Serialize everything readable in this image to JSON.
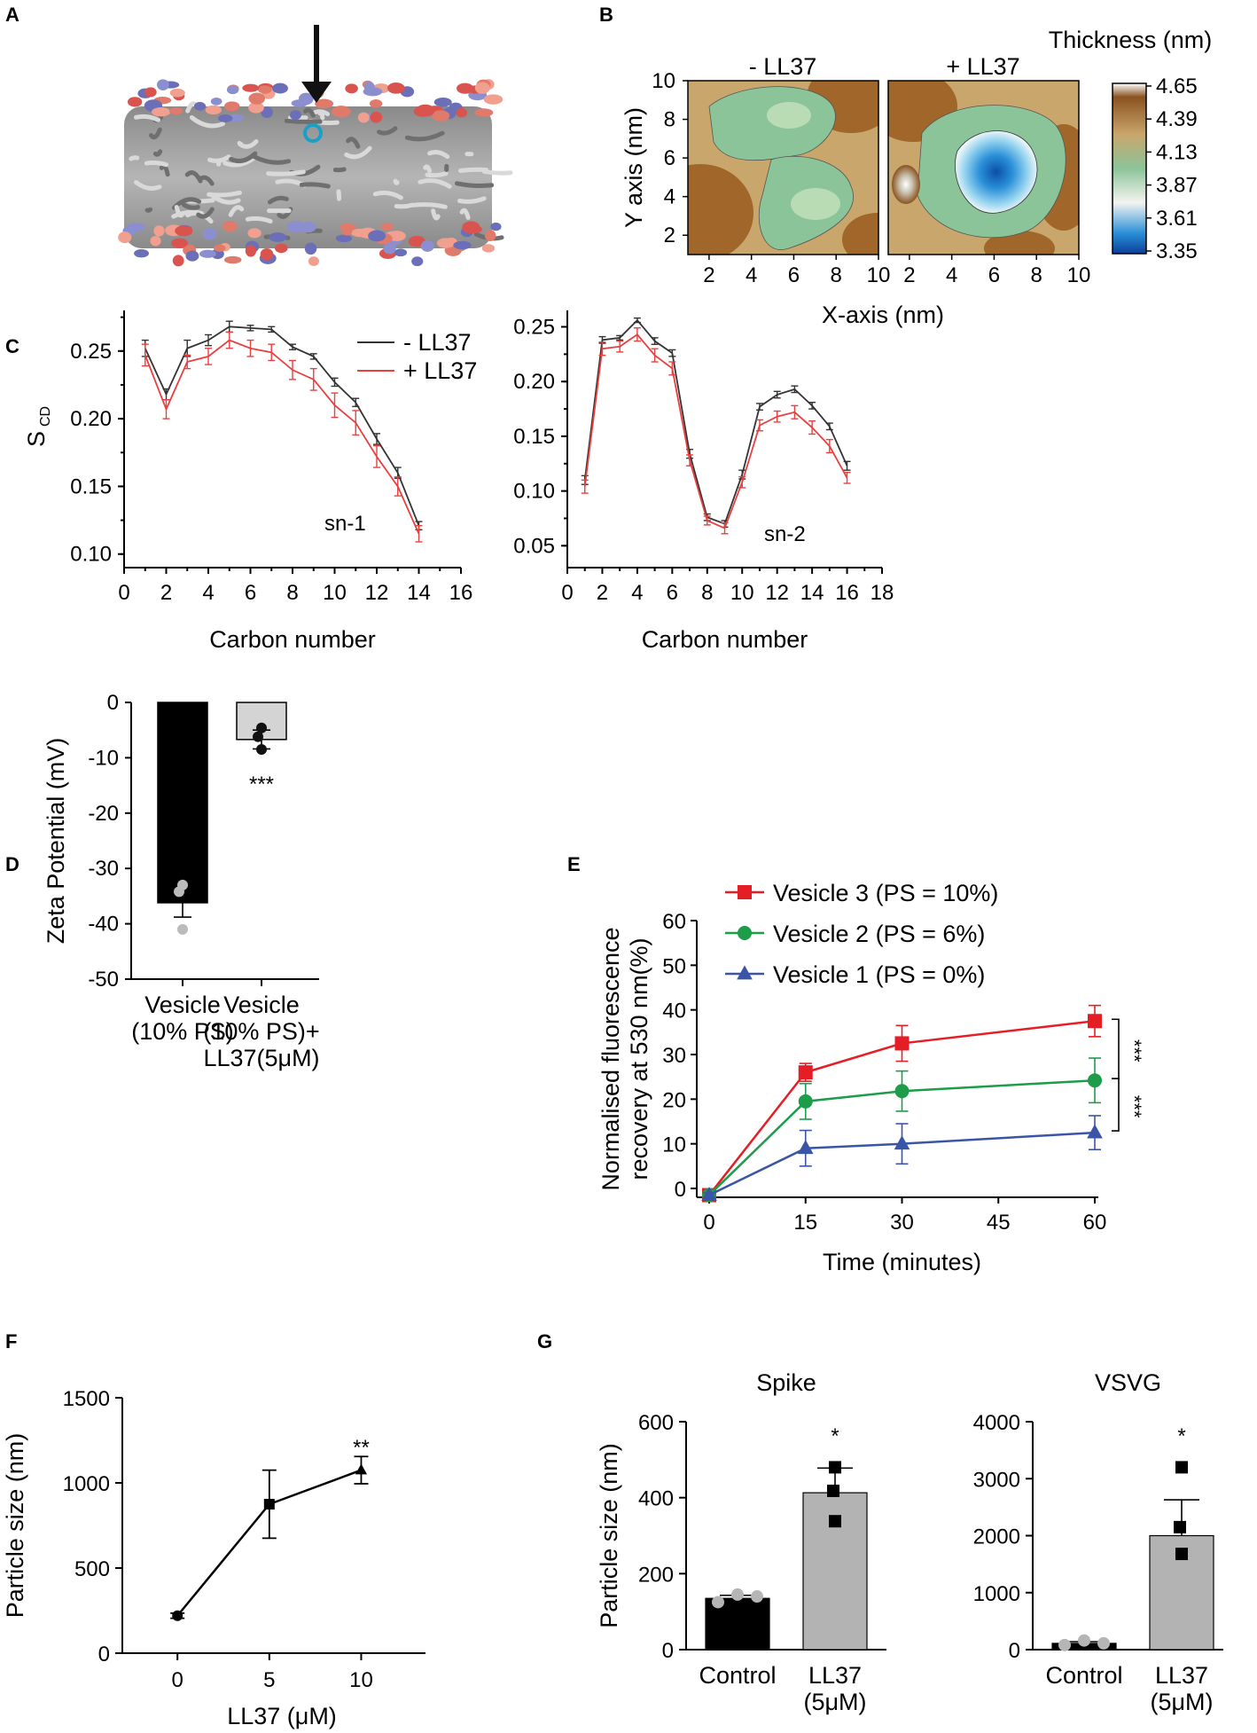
{
  "panels": {
    "a": "A",
    "b": "B",
    "c": "C",
    "d": "D",
    "e": "E",
    "f": "F",
    "g": "G"
  },
  "panel_b": {
    "title_left": "- LL37",
    "title_right": "+ LL37",
    "colorbar_title": "Thickness (nm)",
    "colorbar_ticks": [
      "4.65",
      "4.39",
      "4.13",
      "3.87",
      "3.61",
      "3.35"
    ],
    "xlabel": "X-axis (nm)",
    "ylabel": "Y axis (nm)",
    "xticks": [
      "2",
      "4",
      "6",
      "8",
      "10"
    ],
    "yticks": [
      "10",
      "8",
      "6",
      "4",
      "2"
    ],
    "colors": {
      "brown": "#a0662a",
      "tan": "#c9a66b",
      "green": "#8cc49a",
      "lightgreen": "#b9dcb4",
      "white": "#f4f4f0",
      "blue": "#2a8fd8",
      "darkblue": "#0a4fa8"
    }
  },
  "chart_data": [
    {
      "id": "C-sn1",
      "type": "line",
      "ylabel": "S",
      "ylabel_sub": "CD",
      "xlabel": "Carbon number",
      "annotation": "sn-1",
      "xlim": [
        0,
        16
      ],
      "ylim": [
        0.09,
        0.28
      ],
      "xticks": [
        0,
        2,
        4,
        6,
        8,
        10,
        12,
        14,
        16
      ],
      "yticks": [
        0.1,
        0.15,
        0.2,
        0.25
      ],
      "x": [
        1,
        2,
        3,
        4,
        5,
        6,
        7,
        8,
        9,
        10,
        11,
        12,
        13,
        14
      ],
      "series": [
        {
          "name": "- LL37",
          "color": "#333333",
          "values": [
            0.252,
            0.218,
            0.252,
            0.258,
            0.268,
            0.267,
            0.266,
            0.253,
            0.246,
            0.227,
            0.212,
            0.185,
            0.16,
            0.121
          ],
          "err": [
            0.006,
            0.004,
            0.006,
            0.004,
            0.004,
            0.002,
            0.002,
            0.002,
            0.002,
            0.003,
            0.003,
            0.004,
            0.004,
            0.003
          ]
        },
        {
          "name": "+ LL37",
          "color": "#e84040",
          "values": [
            0.247,
            0.207,
            0.242,
            0.246,
            0.258,
            0.252,
            0.249,
            0.236,
            0.229,
            0.21,
            0.197,
            0.172,
            0.15,
            0.115
          ],
          "err": [
            0.008,
            0.007,
            0.005,
            0.006,
            0.006,
            0.006,
            0.006,
            0.007,
            0.008,
            0.009,
            0.009,
            0.008,
            0.007,
            0.006
          ]
        }
      ]
    },
    {
      "id": "C-sn2",
      "type": "line",
      "xlabel": "Carbon number",
      "annotation": "sn-2",
      "xlim": [
        0,
        18
      ],
      "ylim": [
        0.03,
        0.265
      ],
      "xticks": [
        0,
        2,
        4,
        6,
        8,
        10,
        12,
        14,
        16,
        18
      ],
      "yticks": [
        0.05,
        0.1,
        0.15,
        0.2,
        0.25
      ],
      "x": [
        1,
        2,
        3,
        4,
        5,
        6,
        7,
        8,
        9,
        10,
        11,
        12,
        13,
        14,
        15,
        16
      ],
      "series": [
        {
          "name": "- LL37",
          "color": "#333333",
          "values": [
            0.11,
            0.238,
            0.24,
            0.256,
            0.237,
            0.226,
            0.134,
            0.076,
            0.07,
            0.115,
            0.177,
            0.188,
            0.193,
            0.178,
            0.159,
            0.123
          ],
          "err": [
            0.004,
            0.003,
            0.002,
            0.002,
            0.003,
            0.003,
            0.004,
            0.003,
            0.003,
            0.004,
            0.003,
            0.003,
            0.003,
            0.003,
            0.003,
            0.004
          ]
        },
        {
          "name": "+ LL37",
          "color": "#e84040",
          "values": [
            0.104,
            0.23,
            0.232,
            0.243,
            0.224,
            0.212,
            0.128,
            0.073,
            0.066,
            0.108,
            0.16,
            0.168,
            0.172,
            0.158,
            0.141,
            0.112
          ],
          "err": [
            0.006,
            0.006,
            0.005,
            0.006,
            0.006,
            0.006,
            0.005,
            0.004,
            0.005,
            0.005,
            0.005,
            0.005,
            0.006,
            0.006,
            0.006,
            0.005
          ]
        }
      ]
    },
    {
      "id": "D",
      "type": "bar",
      "ylabel": "Zeta Potential (mV)",
      "ylim": [
        -50,
        0
      ],
      "yticks": [
        0,
        -10,
        -20,
        -30,
        -40,
        -50
      ],
      "categories": [
        "Vesicle (10% PS)",
        "Vesicle (10% PS)+ LL37(5μM)"
      ],
      "category_lines": [
        [
          "Vesicle",
          "(10% PS)"
        ],
        [
          "Vesicle",
          "(10% PS)+",
          "LL37(5μM)"
        ]
      ],
      "values": [
        -36.2,
        -6.7
      ],
      "err": [
        2.6,
        1.7
      ],
      "colors": [
        "#000000",
        "#d4d4d4"
      ],
      "points": [
        [
          -33.0,
          -34.2,
          -41.0
        ],
        [
          -4.6,
          -6.2,
          -8.5
        ]
      ],
      "point_colors": [
        "#bbbbbb",
        "#111111"
      ],
      "significance": [
        "",
        "***"
      ]
    },
    {
      "id": "E",
      "type": "line",
      "ylabel_lines": [
        "Normalised fluorescence",
        "recovery at 530 nm(%)"
      ],
      "xlabel": "Time (minutes)",
      "xlim": [
        0,
        60
      ],
      "ylim": [
        0,
        60
      ],
      "xticks": [
        0,
        15,
        30,
        45,
        60
      ],
      "yticks": [
        0,
        10,
        20,
        30,
        40,
        50,
        60
      ],
      "x": [
        0,
        15,
        30,
        60
      ],
      "series": [
        {
          "name": "Vesicle 3  (PS = 10%)",
          "color": "#e51e25",
          "marker": "square",
          "values": [
            -1.5,
            26,
            32.5,
            37.5
          ],
          "err": [
            0.5,
            2.0,
            4.0,
            3.5
          ]
        },
        {
          "name": "Vesicle 2  (PS = 6%)",
          "color": "#1d9c4a",
          "marker": "circle",
          "values": [
            -1.5,
            19.5,
            21.8,
            24.2
          ],
          "err": [
            0.5,
            4.0,
            4.5,
            5.0
          ]
        },
        {
          "name": "Vesicle 1  (PS = 0%)",
          "color": "#3a55a8",
          "marker": "triangle",
          "values": [
            -1.5,
            9.0,
            10.0,
            12.5
          ],
          "err": [
            0.5,
            4.0,
            4.5,
            3.8
          ]
        }
      ],
      "significance": [
        "***",
        "***"
      ]
    },
    {
      "id": "F",
      "type": "line",
      "ylabel": "Particle size (nm)",
      "xlabel_main": "LL37 (",
      "xlabel_unit": "μ",
      "xlabel_end": "M)",
      "xlim": [
        -3,
        13.5
      ],
      "ylim": [
        0,
        1500
      ],
      "xticks": [
        0,
        5,
        10
      ],
      "yticks": [
        0,
        500,
        1000,
        1500
      ],
      "x": [
        0,
        5,
        10
      ],
      "series": [
        {
          "name": "particle size",
          "color": "#000000",
          "markers": [
            "circle",
            "square",
            "triangle"
          ],
          "values": [
            220,
            875,
            1075
          ],
          "err": [
            15,
            200,
            80
          ]
        }
      ],
      "significance": "**"
    },
    {
      "id": "G-spike",
      "type": "bar",
      "title": "Spike",
      "ylabel": "Particle size (nm)",
      "ylim": [
        0,
        600
      ],
      "yticks": [
        0,
        200,
        400,
        600
      ],
      "categories": [
        "Control",
        "LL37 (5μM)"
      ],
      "category_lines": [
        [
          "Control"
        ],
        [
          "LL37",
          "(5μM)"
        ]
      ],
      "values": [
        135,
        413
      ],
      "err": [
        8,
        65
      ],
      "colors": [
        "#000000",
        "#b3b3b3"
      ],
      "points": [
        [
          125,
          145,
          140
        ],
        [
          480,
          418,
          338
        ]
      ],
      "point_shapes": [
        "circle",
        "square"
      ],
      "point_colors": [
        "#b5b5b5",
        "#000000"
      ],
      "significance": [
        "",
        "*"
      ]
    },
    {
      "id": "G-vsvg",
      "type": "bar",
      "title": "VSVG",
      "ylim": [
        0,
        4000
      ],
      "yticks": [
        0,
        1000,
        2000,
        3000,
        4000
      ],
      "categories": [
        "Control",
        "LL37 (5μM)"
      ],
      "category_lines": [
        [
          "Control"
        ],
        [
          "LL37",
          "(5μM)"
        ]
      ],
      "values": [
        110,
        2000
      ],
      "err": [
        30,
        630
      ],
      "colors": [
        "#000000",
        "#b3b3b3"
      ],
      "points": [
        [
          80,
          160,
          110
        ],
        [
          3200,
          2150,
          1680
        ]
      ],
      "point_shapes": [
        "circle",
        "square"
      ],
      "point_colors": [
        "#b5b5b5",
        "#000000"
      ],
      "significance": [
        "",
        "*"
      ]
    }
  ]
}
